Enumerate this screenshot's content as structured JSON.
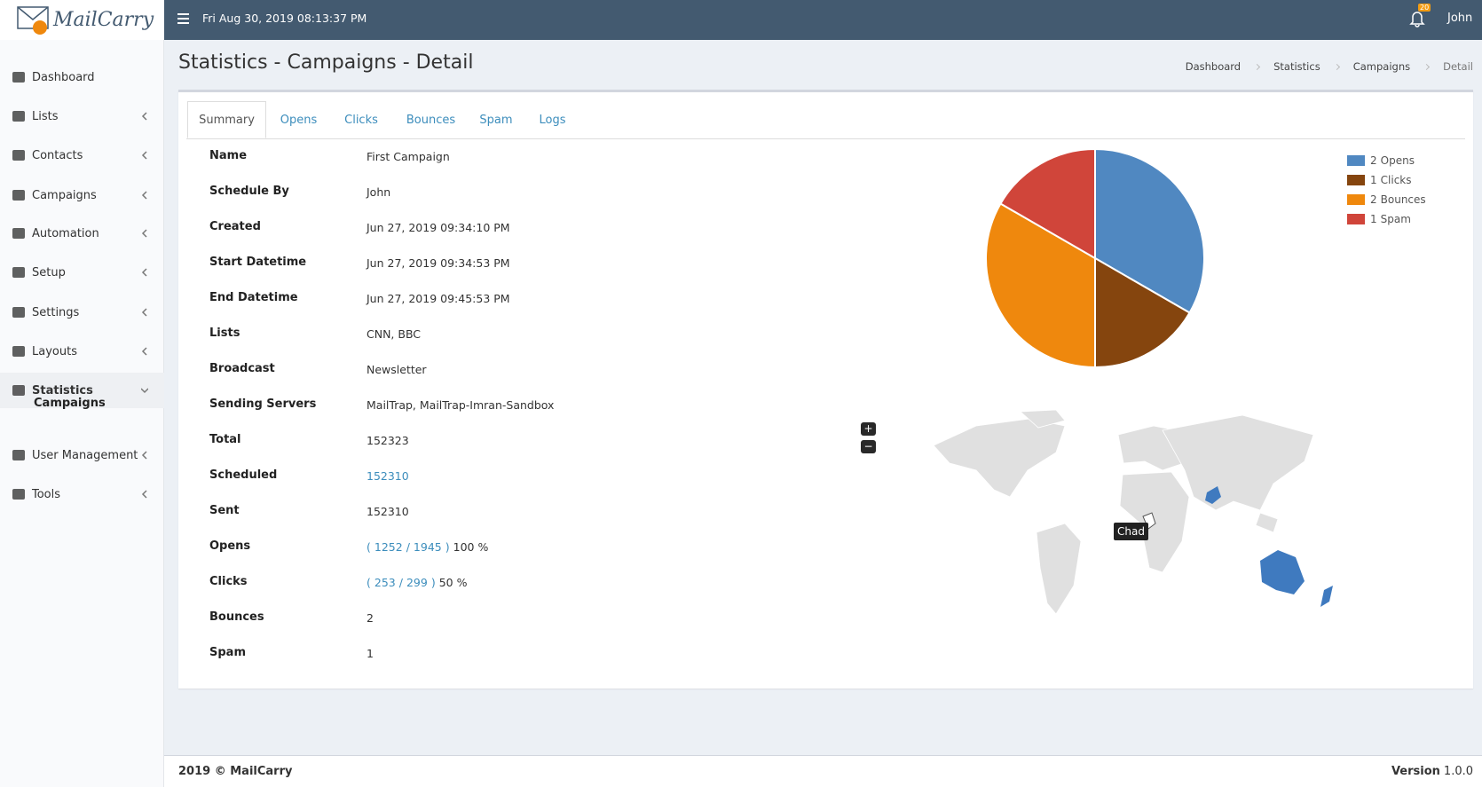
{
  "header": {
    "logo": "MailCarry",
    "datetime": "Fri Aug 30, 2019 08:13:37 PM",
    "notifications": "20",
    "user": "John"
  },
  "sidebar": {
    "items": [
      "Dashboard",
      "Lists",
      "Contacts",
      "Campaigns",
      "Automation",
      "Setup",
      "Settings",
      "Layouts",
      "Statistics",
      "User Management",
      "Tools"
    ],
    "subitems": [
      "Campaigns"
    ]
  },
  "page": {
    "title": "Statistics - Campaigns - Detail",
    "breadcrumb": [
      "Dashboard",
      "Statistics",
      "Campaigns",
      "Detail"
    ]
  },
  "tabs": [
    "Summary",
    "Opens",
    "Clicks",
    "Bounces",
    "Spam",
    "Logs"
  ],
  "details": {
    "rows": [
      {
        "label": "Name",
        "value": [
          {
            "text": "First Campaign"
          }
        ]
      },
      {
        "label": "Schedule By",
        "value": [
          {
            "text": "John"
          }
        ]
      },
      {
        "label": "Created",
        "value": [
          {
            "text": "Jun 27, 2019 09:34:10 PM"
          }
        ]
      },
      {
        "label": "Start Datetime",
        "value": [
          {
            "text": "Jun 27, 2019 09:34:53 PM"
          }
        ]
      },
      {
        "label": "End Datetime",
        "value": [
          {
            "text": "Jun 27, 2019 09:45:53 PM"
          }
        ]
      },
      {
        "label": "Lists",
        "value": [
          {
            "text": "CNN, BBC"
          }
        ]
      },
      {
        "label": "Broadcast",
        "value": [
          {
            "text": "Newsletter"
          }
        ]
      },
      {
        "label": "Sending Servers",
        "value": [
          {
            "text": "MailTrap, MailTrap-Imran-Sandbox"
          }
        ]
      },
      {
        "label": "Total",
        "value": [
          {
            "text": "152323"
          }
        ]
      },
      {
        "label": "Scheduled",
        "value": [
          {
            "link": "152310"
          }
        ]
      },
      {
        "label": "Sent",
        "value": [
          {
            "text": "152310"
          }
        ]
      },
      {
        "label": "Opens",
        "value": [
          {
            "link": "("
          },
          {
            "link": "1252"
          },
          {
            "link": "/"
          },
          {
            "link": "1945"
          },
          {
            "link": ")"
          },
          {
            "text": "100 %"
          }
        ]
      },
      {
        "label": "Clicks",
        "value": [
          {
            "link": "("
          },
          {
            "link": "253"
          },
          {
            "link": "/"
          },
          {
            "link": "299"
          },
          {
            "link": ")"
          },
          {
            "text": "50 %"
          }
        ]
      },
      {
        "label": "Bounces",
        "value": [
          {
            "text": "2"
          }
        ]
      },
      {
        "label": "Spam",
        "value": [
          {
            "text": "1"
          }
        ]
      }
    ]
  },
  "chart_data": {
    "type": "pie",
    "categories": [
      "Opens",
      "Clicks",
      "Bounces",
      "Spam"
    ],
    "values": [
      2,
      1,
      2,
      1
    ],
    "colors": [
      "#5088c1",
      "#85450e",
      "#ef880d",
      "#d0453a"
    ],
    "legend": "top-right"
  },
  "map": {
    "tooltip": "Chad",
    "zoom_in": "+",
    "zoom_out": "−"
  },
  "footer": {
    "copyright": "2019 © MailCarry",
    "version_label": "Version",
    "version": "1.0.0"
  }
}
